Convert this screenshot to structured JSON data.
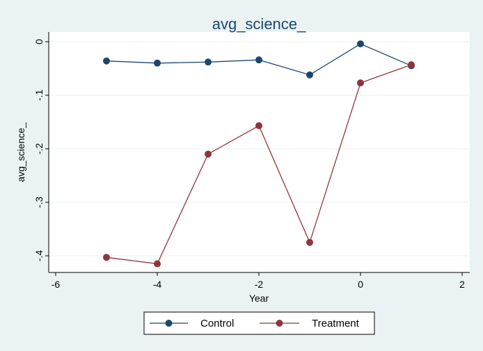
{
  "chart_data": {
    "type": "line",
    "title": "avg_science_",
    "xlabel": "Year",
    "ylabel": "avg_science_",
    "xlim": [
      -6,
      2
    ],
    "ylim": [
      -0.4,
      0
    ],
    "xticks": [
      "-6",
      "-4",
      "-2",
      "0",
      "2"
    ],
    "yticks": [
      "0",
      "-.1",
      "-.2",
      "-.3",
      "-.4"
    ],
    "grid": true,
    "legend_position": "bottom",
    "x": [
      -5,
      -4,
      -3,
      -2,
      -1,
      0,
      1
    ],
    "series": [
      {
        "name": "Control",
        "color": "#1a476f",
        "values": [
          -0.036,
          -0.04,
          -0.038,
          -0.034,
          -0.062,
          -0.004,
          -0.045
        ]
      },
      {
        "name": "Treatment",
        "color": "#90353b",
        "values": [
          -0.403,
          -0.415,
          -0.21,
          -0.157,
          -0.375,
          -0.077,
          -0.043
        ]
      }
    ]
  }
}
